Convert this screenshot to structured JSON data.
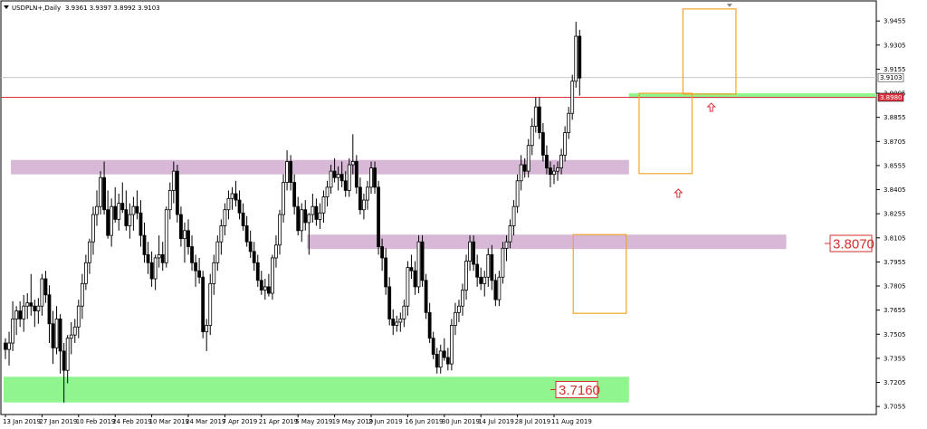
{
  "header": {
    "symbol": "USDPLN+,Daily",
    "ohlc": "3.9361 3.9397 3.8992 3.9103"
  },
  "current_price": {
    "label": "3.9103",
    "value": 3.9103
  },
  "marked_price": {
    "label": "3.8980",
    "value": 3.898
  },
  "levels": {
    "upper_label": "3.8070",
    "lower_label": "3.7160"
  },
  "colors": {
    "bull": "#ffffff",
    "bear": "#000000",
    "outline": "#000000",
    "zone_purple": "#d7b8d7",
    "zone_green": "#90f58f",
    "box_orange": "#f0a52a",
    "arrow_red": "#e0303a",
    "hline_red": "#e03040",
    "hline_gray": "#c8c8c8",
    "level_text": "#d0312d"
  },
  "chart_data": {
    "type": "candlestick",
    "y_axis": {
      "min": 3.7005,
      "max": 3.958,
      "ticks": [
        "3.9455",
        "3.9305",
        "3.9155",
        "3.9005",
        "3.8855",
        "3.8705",
        "3.8555",
        "3.8405",
        "3.8255",
        "3.8105",
        "3.7955",
        "3.7805",
        "3.7655",
        "3.7505",
        "3.7355",
        "3.7205",
        "3.7055"
      ]
    },
    "x_axis": {
      "labels": [
        "13 Jan 2019",
        "27 Jan 2019",
        "10 Feb 2019",
        "24 Feb 2019",
        "10 Mar 2019",
        "24 Mar 2019",
        "7 Apr 2019",
        "21 Apr 2019",
        "5 May 2019",
        "19 May 2019",
        "2 Jun 2019",
        "16 Jun 2019",
        "30 Jun 2019",
        "14 Jul 2019",
        "28 Jul 2019",
        "11 Aug 2019"
      ]
    },
    "zones": [
      {
        "name": "resistance-zone",
        "color": "purple",
        "y1": 3.859,
        "y2": 3.85,
        "from": 2,
        "to": 170
      },
      {
        "name": "mid-zone",
        "color": "purple",
        "y1": 3.8125,
        "y2": 3.8035,
        "from": 83,
        "to": 213
      },
      {
        "name": "support-zone",
        "color": "green",
        "y1": 3.724,
        "y2": 3.708,
        "from": 0,
        "to": 170
      },
      {
        "name": "breakout-zone",
        "color": "green",
        "y1": 3.9005,
        "y2": 3.8975,
        "from": 171,
        "to": 240
      }
    ],
    "boxes": [
      {
        "name": "box-1",
        "y1": 3.8125,
        "y2": 3.7635,
        "from": 156,
        "to": 169
      },
      {
        "name": "box-2",
        "y1": 3.9005,
        "y2": 3.8505,
        "from": 174,
        "to": 187
      },
      {
        "name": "box-3",
        "y1": 3.953,
        "y2": 3.9,
        "from": 186,
        "to": 199
      }
    ],
    "arrows": [
      {
        "name": "arrow-1",
        "x": 184,
        "y": 3.838
      },
      {
        "name": "arrow-2",
        "x": 193,
        "y": 3.8915
      }
    ],
    "level_marks": [
      {
        "value": 3.807,
        "x": 225
      },
      {
        "value": 3.716,
        "x": 150
      }
    ],
    "ohlc": [
      [
        3.745,
        3.748,
        3.735,
        3.741
      ],
      [
        3.741,
        3.752,
        3.731,
        3.745
      ],
      [
        3.745,
        3.771,
        3.74,
        3.76
      ],
      [
        3.76,
        3.768,
        3.75,
        3.765
      ],
      [
        3.765,
        3.771,
        3.755,
        3.76
      ],
      [
        3.76,
        3.775,
        3.752,
        3.768
      ],
      [
        3.768,
        3.776,
        3.76,
        3.77
      ],
      [
        3.77,
        3.788,
        3.762,
        3.768
      ],
      [
        3.768,
        3.772,
        3.755,
        3.765
      ],
      [
        3.765,
        3.773,
        3.757,
        3.768
      ],
      [
        3.768,
        3.788,
        3.762,
        3.785
      ],
      [
        3.785,
        3.79,
        3.77,
        3.775
      ],
      [
        3.775,
        3.781,
        3.745,
        3.757
      ],
      [
        3.757,
        3.765,
        3.732,
        3.742
      ],
      [
        3.742,
        3.768,
        3.738,
        3.76
      ],
      [
        3.76,
        3.763,
        3.726,
        3.74
      ],
      [
        3.74,
        3.745,
        3.708,
        3.728
      ],
      [
        3.728,
        3.75,
        3.72,
        3.748
      ],
      [
        3.748,
        3.758,
        3.738,
        3.75
      ],
      [
        3.75,
        3.76,
        3.745,
        3.755
      ],
      [
        3.755,
        3.772,
        3.748,
        3.768
      ],
      [
        3.768,
        3.788,
        3.76,
        3.782
      ],
      [
        3.782,
        3.8,
        3.778,
        3.795
      ],
      [
        3.795,
        3.81,
        3.788,
        3.808
      ],
      [
        3.808,
        3.83,
        3.8,
        3.825
      ],
      [
        3.825,
        3.84,
        3.818,
        3.83
      ],
      [
        3.83,
        3.852,
        3.825,
        3.848
      ],
      [
        3.848,
        3.858,
        3.825,
        3.828
      ],
      [
        3.828,
        3.84,
        3.81,
        3.812
      ],
      [
        3.812,
        3.835,
        3.805,
        3.83
      ],
      [
        3.83,
        3.842,
        3.82,
        3.822
      ],
      [
        3.822,
        3.838,
        3.815,
        3.832
      ],
      [
        3.832,
        3.845,
        3.826,
        3.828
      ],
      [
        3.828,
        3.84,
        3.815,
        3.818
      ],
      [
        3.818,
        3.832,
        3.81,
        3.825
      ],
      [
        3.825,
        3.836,
        3.815,
        3.83
      ],
      [
        3.83,
        3.84,
        3.822,
        3.826
      ],
      [
        3.826,
        3.834,
        3.805,
        3.812
      ],
      [
        3.812,
        3.82,
        3.795,
        3.8
      ],
      [
        3.8,
        3.808,
        3.788,
        3.795
      ],
      [
        3.795,
        3.802,
        3.78,
        3.785
      ],
      [
        3.785,
        3.8,
        3.778,
        3.798
      ],
      [
        3.798,
        3.812,
        3.792,
        3.8
      ],
      [
        3.8,
        3.808,
        3.79,
        3.795
      ],
      [
        3.795,
        3.83,
        3.792,
        3.828
      ],
      [
        3.828,
        3.845,
        3.822,
        3.84
      ],
      [
        3.84,
        3.858,
        3.832,
        3.852
      ],
      [
        3.852,
        3.856,
        3.82,
        3.825
      ],
      [
        3.825,
        3.83,
        3.805,
        3.81
      ],
      [
        3.81,
        3.82,
        3.795,
        3.815
      ],
      [
        3.815,
        3.822,
        3.8,
        3.805
      ],
      [
        3.805,
        3.812,
        3.79,
        3.795
      ],
      [
        3.795,
        3.8,
        3.78,
        3.79
      ],
      [
        3.79,
        3.798,
        3.782,
        3.786
      ],
      [
        3.786,
        3.79,
        3.748,
        3.752
      ],
      [
        3.752,
        3.76,
        3.74,
        3.756
      ],
      [
        3.756,
        3.788,
        3.75,
        3.782
      ],
      [
        3.782,
        3.8,
        3.775,
        3.795
      ],
      [
        3.795,
        3.812,
        3.79,
        3.808
      ],
      [
        3.808,
        3.822,
        3.8,
        3.818
      ],
      [
        3.818,
        3.832,
        3.812,
        3.828
      ],
      [
        3.828,
        3.84,
        3.822,
        3.835
      ],
      [
        3.835,
        3.842,
        3.828,
        3.838
      ],
      [
        3.838,
        3.846,
        3.83,
        3.834
      ],
      [
        3.834,
        3.84,
        3.822,
        3.826
      ],
      [
        3.826,
        3.832,
        3.815,
        3.818
      ],
      [
        3.818,
        3.824,
        3.805,
        3.808
      ],
      [
        3.808,
        3.815,
        3.798,
        3.802
      ],
      [
        3.802,
        3.808,
        3.79,
        3.795
      ],
      [
        3.795,
        3.8,
        3.78,
        3.784
      ],
      [
        3.784,
        3.79,
        3.775,
        3.778
      ],
      [
        3.778,
        3.785,
        3.772,
        3.78
      ],
      [
        3.78,
        3.788,
        3.774,
        3.776
      ],
      [
        3.776,
        3.8,
        3.772,
        3.798
      ],
      [
        3.798,
        3.812,
        3.792,
        3.806
      ],
      [
        3.806,
        3.828,
        3.8,
        3.825
      ],
      [
        3.825,
        3.85,
        3.82,
        3.845
      ],
      [
        3.845,
        3.865,
        3.84,
        3.858
      ],
      [
        3.858,
        3.862,
        3.84,
        3.845
      ],
      [
        3.845,
        3.85,
        3.825,
        3.83
      ],
      [
        3.83,
        3.836,
        3.812,
        3.815
      ],
      [
        3.815,
        3.832,
        3.808,
        3.828
      ],
      [
        3.828,
        3.834,
        3.815,
        3.82
      ],
      [
        3.82,
        3.826,
        3.8,
        3.825
      ],
      [
        3.825,
        3.838,
        3.82,
        3.83
      ],
      [
        3.83,
        3.835,
        3.818,
        3.822
      ],
      [
        3.822,
        3.832,
        3.816,
        3.826
      ],
      [
        3.826,
        3.84,
        3.82,
        3.836
      ],
      [
        3.836,
        3.846,
        3.83,
        3.842
      ],
      [
        3.842,
        3.856,
        3.838,
        3.852
      ],
      [
        3.852,
        3.86,
        3.845,
        3.848
      ],
      [
        3.848,
        3.855,
        3.84,
        3.85
      ],
      [
        3.85,
        3.858,
        3.842,
        3.846
      ],
      [
        3.846,
        3.852,
        3.836,
        3.84
      ],
      [
        3.84,
        3.86,
        3.836,
        3.856
      ],
      [
        3.856,
        3.875,
        3.85,
        3.858
      ],
      [
        3.858,
        3.862,
        3.838,
        3.842
      ],
      [
        3.842,
        3.848,
        3.825,
        3.828
      ],
      [
        3.828,
        3.838,
        3.822,
        3.834
      ],
      [
        3.834,
        3.846,
        3.828,
        3.842
      ],
      [
        3.842,
        3.858,
        3.838,
        3.854
      ],
      [
        3.854,
        3.858,
        3.838,
        3.842
      ],
      [
        3.842,
        3.846,
        3.8,
        3.805
      ],
      [
        3.805,
        3.81,
        3.79,
        3.798
      ],
      [
        3.798,
        3.804,
        3.775,
        3.78
      ],
      [
        3.78,
        3.786,
        3.756,
        3.76
      ],
      [
        3.76,
        3.766,
        3.75,
        3.756
      ],
      [
        3.756,
        3.762,
        3.752,
        3.758
      ],
      [
        3.758,
        3.764,
        3.752,
        3.76
      ],
      [
        3.76,
        3.772,
        3.755,
        3.768
      ],
      [
        3.768,
        3.796,
        3.762,
        3.792
      ],
      [
        3.792,
        3.8,
        3.785,
        3.79
      ],
      [
        3.79,
        3.796,
        3.775,
        3.78
      ],
      [
        3.78,
        3.812,
        3.776,
        3.808
      ],
      [
        3.808,
        3.812,
        3.78,
        3.784
      ],
      [
        3.784,
        3.788,
        3.76,
        3.764
      ],
      [
        3.764,
        3.77,
        3.745,
        3.748
      ],
      [
        3.748,
        3.752,
        3.735,
        3.738
      ],
      [
        3.738,
        3.742,
        3.726,
        3.73
      ],
      [
        3.73,
        3.744,
        3.726,
        3.74
      ],
      [
        3.74,
        3.748,
        3.734,
        3.736
      ],
      [
        3.736,
        3.742,
        3.728,
        3.732
      ],
      [
        3.732,
        3.76,
        3.728,
        3.756
      ],
      [
        3.756,
        3.77,
        3.75,
        3.764
      ],
      [
        3.764,
        3.772,
        3.758,
        3.768
      ],
      [
        3.768,
        3.782,
        3.762,
        3.778
      ],
      [
        3.778,
        3.8,
        3.772,
        3.796
      ],
      [
        3.796,
        3.812,
        3.79,
        3.808
      ],
      [
        3.808,
        3.812,
        3.79,
        3.794
      ],
      [
        3.794,
        3.8,
        3.78,
        3.786
      ],
      [
        3.786,
        3.792,
        3.778,
        3.782
      ],
      [
        3.782,
        3.79,
        3.774,
        3.786
      ],
      [
        3.786,
        3.804,
        3.78,
        3.8
      ],
      [
        3.8,
        3.806,
        3.778,
        3.784
      ],
      [
        3.784,
        3.788,
        3.768,
        3.772
      ],
      [
        3.772,
        3.79,
        3.768,
        3.786
      ],
      [
        3.786,
        3.808,
        3.782,
        3.804
      ],
      [
        3.804,
        3.812,
        3.796,
        3.808
      ],
      [
        3.808,
        3.822,
        3.804,
        3.818
      ],
      [
        3.818,
        3.834,
        3.812,
        3.83
      ],
      [
        3.83,
        3.85,
        3.826,
        3.846
      ],
      [
        3.846,
        3.862,
        3.84,
        3.856
      ],
      [
        3.856,
        3.86,
        3.848,
        3.852
      ],
      [
        3.852,
        3.872,
        3.848,
        3.868
      ],
      [
        3.868,
        3.885,
        3.862,
        3.88
      ],
      [
        3.88,
        3.898,
        3.876,
        3.892
      ],
      [
        3.892,
        3.898,
        3.872,
        3.876
      ],
      [
        3.876,
        3.882,
        3.858,
        3.862
      ],
      [
        3.862,
        3.868,
        3.85,
        3.854
      ],
      [
        3.854,
        3.858,
        3.842,
        3.85
      ],
      [
        3.85,
        3.856,
        3.844,
        3.852
      ],
      [
        3.852,
        3.858,
        3.846,
        3.854
      ],
      [
        3.854,
        3.866,
        3.85,
        3.862
      ],
      [
        3.862,
        3.88,
        3.858,
        3.876
      ],
      [
        3.876,
        3.892,
        3.872,
        3.888
      ],
      [
        3.888,
        3.912,
        3.884,
        3.908
      ],
      [
        3.908,
        3.945,
        3.904,
        3.936
      ],
      [
        3.936,
        3.94,
        3.899,
        3.91
      ]
    ]
  }
}
